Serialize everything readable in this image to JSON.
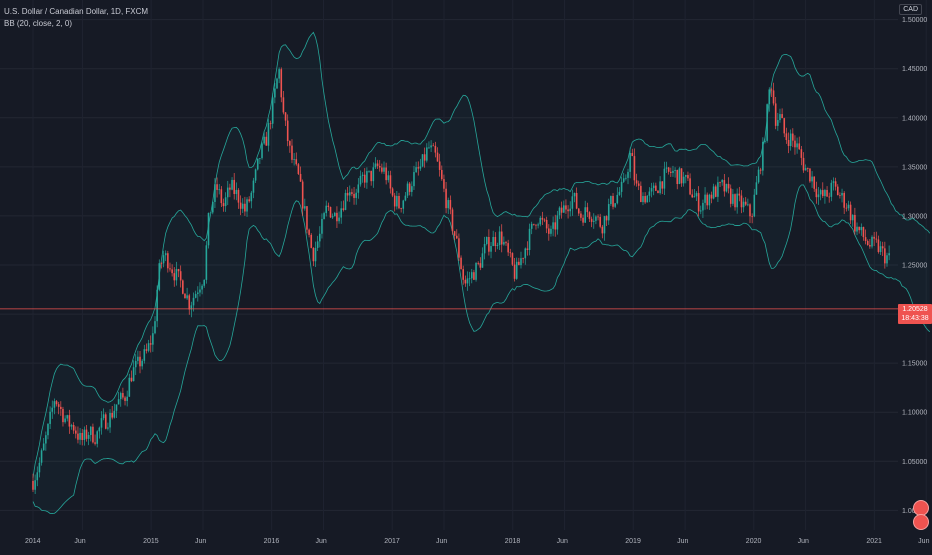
{
  "legend": {
    "symbol_line": "U.S. Dollar / Canadian Dollar, 1D, FXCM",
    "indicator_line": "BB (20, close, 2, 0)"
  },
  "currency_label": "CAD",
  "price_badge": {
    "price": "1.20528",
    "countdown": "18:43:38",
    "color": "#ef5350"
  },
  "colors": {
    "background": "#161a25",
    "up_candle": "#26a69a",
    "down_candle": "#ef5350",
    "band": "#26a69a",
    "price_line": "#ef5350"
  },
  "chart_data": {
    "type": "line",
    "title": "U.S. Dollar / Canadian Dollar, 1D, FXCM",
    "xlabel": "",
    "ylabel": "",
    "x_ticks": [
      "2014",
      "Jun",
      "2015",
      "Jun",
      "2016",
      "Jun",
      "2017",
      "Jun",
      "2018",
      "Jun",
      "2019",
      "Jun",
      "2020",
      "Jun",
      "2021",
      "Jun"
    ],
    "y_ticks": [
      "1.00000",
      "1.05000",
      "1.10000",
      "1.15000",
      "1.20000",
      "1.25000",
      "1.30000",
      "1.35000",
      "1.40000",
      "1.45000",
      "1.50000"
    ],
    "ylim": [
      0.98,
      1.52
    ],
    "xlim": [
      2014.0,
      2021.45
    ],
    "current_price": 1.20528,
    "grid": true,
    "series": [
      {
        "name": "",
        "x": [
          2014.0,
          2014.06,
          2014.12,
          2014.18,
          2014.22,
          2014.28,
          2014.34,
          2014.4,
          2014.46,
          2014.52,
          2014.58,
          2014.64,
          2014.7,
          2014.76,
          2014.82,
          2014.88,
          2014.94,
          2015.0,
          2015.04,
          2015.08,
          2015.12,
          2015.18,
          2015.24,
          2015.3,
          2015.36,
          2015.42,
          2015.46,
          2015.52,
          2015.58,
          2015.64,
          2015.7,
          2015.76,
          2015.82,
          2015.88,
          2015.94,
          2016.0,
          2016.04,
          2016.08,
          2016.14,
          2016.2,
          2016.26,
          2016.32,
          2016.38,
          2016.44,
          2016.5,
          2016.56,
          2016.62,
          2016.68,
          2016.74,
          2016.8,
          2016.86,
          2016.92,
          2016.98,
          2017.04,
          2017.1,
          2017.16,
          2017.22,
          2017.28,
          2017.34,
          2017.4,
          2017.46,
          2017.52,
          2017.58,
          2017.64,
          2017.7,
          2017.76,
          2017.82,
          2017.88,
          2017.94,
          2018.0,
          2018.06,
          2018.12,
          2018.18,
          2018.24,
          2018.3,
          2018.36,
          2018.42,
          2018.48,
          2018.54,
          2018.6,
          2018.66,
          2018.72,
          2018.78,
          2018.84,
          2018.9,
          2018.96,
          2019.0,
          2019.06,
          2019.12,
          2019.18,
          2019.24,
          2019.3,
          2019.36,
          2019.42,
          2019.48,
          2019.54,
          2019.6,
          2019.66,
          2019.72,
          2019.78,
          2019.84,
          2019.9,
          2019.96,
          2020.0,
          2020.06,
          2020.12,
          2020.16,
          2020.2,
          2020.24,
          2020.28,
          2020.34,
          2020.4,
          2020.46,
          2020.52,
          2020.58,
          2020.64,
          2020.7,
          2020.76,
          2020.82,
          2020.88,
          2020.94,
          2021.0,
          2021.06,
          2021.12,
          2021.18,
          2021.24,
          2021.3,
          2021.36,
          2021.4,
          2021.44
        ],
        "close": [
          1.03,
          1.05,
          1.08,
          1.115,
          1.105,
          1.09,
          1.085,
          1.07,
          1.08,
          1.075,
          1.09,
          1.095,
          1.11,
          1.115,
          1.14,
          1.15,
          1.16,
          1.18,
          1.24,
          1.26,
          1.255,
          1.24,
          1.23,
          1.21,
          1.225,
          1.24,
          1.3,
          1.33,
          1.31,
          1.33,
          1.32,
          1.305,
          1.325,
          1.36,
          1.38,
          1.42,
          1.45,
          1.4,
          1.36,
          1.34,
          1.3,
          1.26,
          1.28,
          1.31,
          1.3,
          1.31,
          1.33,
          1.32,
          1.34,
          1.34,
          1.35,
          1.345,
          1.32,
          1.31,
          1.325,
          1.34,
          1.35,
          1.37,
          1.36,
          1.33,
          1.3,
          1.27,
          1.23,
          1.24,
          1.25,
          1.27,
          1.275,
          1.28,
          1.26,
          1.24,
          1.26,
          1.28,
          1.3,
          1.29,
          1.28,
          1.3,
          1.31,
          1.32,
          1.3,
          1.305,
          1.3,
          1.29,
          1.31,
          1.32,
          1.33,
          1.365,
          1.33,
          1.32,
          1.32,
          1.33,
          1.34,
          1.345,
          1.34,
          1.335,
          1.32,
          1.31,
          1.32,
          1.325,
          1.33,
          1.32,
          1.315,
          1.31,
          1.3,
          1.33,
          1.37,
          1.44,
          1.4,
          1.4,
          1.38,
          1.38,
          1.37,
          1.35,
          1.34,
          1.32,
          1.32,
          1.33,
          1.32,
          1.31,
          1.29,
          1.28,
          1.27,
          1.27,
          1.26,
          1.255,
          1.25,
          1.24,
          1.22,
          1.21,
          1.20528,
          1.205
        ]
      }
    ]
  },
  "events": {
    "icon_top": "earnings-flag-icon",
    "icon_bottom": "earnings-flag-icon"
  }
}
